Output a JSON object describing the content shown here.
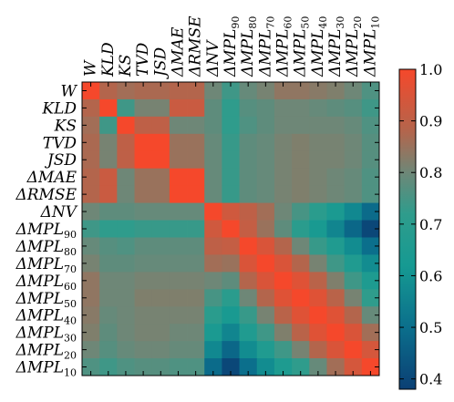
{
  "chart_data": {
    "type": "heatmap",
    "title": "",
    "xlabel": "",
    "ylabel": "",
    "labels": [
      {
        "main": "W",
        "sub": ""
      },
      {
        "main": "KLD",
        "sub": ""
      },
      {
        "main": "KS",
        "sub": ""
      },
      {
        "main": "TVD",
        "sub": ""
      },
      {
        "main": "JSD",
        "sub": ""
      },
      {
        "main": "ΔMAE",
        "sub": ""
      },
      {
        "main": "ΔRMSE",
        "sub": ""
      },
      {
        "main": "ΔNV",
        "sub": ""
      },
      {
        "main": "ΔMPL",
        "sub": "90"
      },
      {
        "main": "ΔMPL",
        "sub": "80"
      },
      {
        "main": "ΔMPL",
        "sub": "70"
      },
      {
        "main": "ΔMPL",
        "sub": "60"
      },
      {
        "main": "ΔMPL",
        "sub": "50"
      },
      {
        "main": "ΔMPL",
        "sub": "40"
      },
      {
        "main": "ΔMPL",
        "sub": "30"
      },
      {
        "main": "ΔMPL",
        "sub": "20"
      },
      {
        "main": "ΔMPL",
        "sub": "10"
      }
    ],
    "matrix": [
      [
        1.0,
        0.88,
        0.86,
        0.87,
        0.87,
        0.88,
        0.88,
        0.8,
        0.74,
        0.79,
        0.81,
        0.84,
        0.84,
        0.83,
        0.82,
        0.8,
        0.76
      ],
      [
        0.88,
        1.0,
        0.74,
        0.81,
        0.81,
        0.92,
        0.92,
        0.78,
        0.72,
        0.77,
        0.78,
        0.8,
        0.8,
        0.79,
        0.78,
        0.77,
        0.74
      ],
      [
        0.86,
        0.74,
        1.0,
        0.9,
        0.9,
        0.8,
        0.8,
        0.78,
        0.72,
        0.76,
        0.78,
        0.8,
        0.8,
        0.8,
        0.8,
        0.79,
        0.76
      ],
      [
        0.87,
        0.81,
        0.9,
        1.0,
        1.0,
        0.85,
        0.85,
        0.79,
        0.73,
        0.78,
        0.79,
        0.81,
        0.82,
        0.81,
        0.81,
        0.8,
        0.77
      ],
      [
        0.87,
        0.81,
        0.9,
        1.0,
        1.0,
        0.85,
        0.85,
        0.79,
        0.73,
        0.78,
        0.79,
        0.81,
        0.82,
        0.81,
        0.81,
        0.8,
        0.77
      ],
      [
        0.88,
        0.92,
        0.8,
        0.85,
        0.85,
        1.0,
        1.0,
        0.79,
        0.73,
        0.78,
        0.79,
        0.81,
        0.82,
        0.81,
        0.8,
        0.79,
        0.76
      ],
      [
        0.88,
        0.92,
        0.8,
        0.85,
        0.85,
        1.0,
        1.0,
        0.79,
        0.73,
        0.78,
        0.79,
        0.81,
        0.82,
        0.81,
        0.8,
        0.79,
        0.76
      ],
      [
        0.8,
        0.78,
        0.78,
        0.79,
        0.79,
        0.79,
        0.79,
        1.0,
        0.93,
        0.9,
        0.86,
        0.8,
        0.75,
        0.7,
        0.64,
        0.57,
        0.49
      ],
      [
        0.74,
        0.72,
        0.72,
        0.73,
        0.73,
        0.73,
        0.73,
        0.93,
        1.0,
        0.91,
        0.85,
        0.78,
        0.7,
        0.63,
        0.56,
        0.48,
        0.4
      ],
      [
        0.79,
        0.77,
        0.76,
        0.78,
        0.78,
        0.78,
        0.78,
        0.9,
        0.91,
        1.0,
        0.95,
        0.88,
        0.8,
        0.73,
        0.66,
        0.58,
        0.5
      ],
      [
        0.81,
        0.78,
        0.78,
        0.79,
        0.79,
        0.79,
        0.79,
        0.86,
        0.85,
        0.95,
        1.0,
        0.95,
        0.88,
        0.81,
        0.74,
        0.66,
        0.58
      ],
      [
        0.84,
        0.8,
        0.8,
        0.81,
        0.81,
        0.81,
        0.81,
        0.8,
        0.78,
        0.88,
        0.95,
        1.0,
        0.96,
        0.89,
        0.82,
        0.74,
        0.65
      ],
      [
        0.84,
        0.8,
        0.8,
        0.82,
        0.82,
        0.82,
        0.82,
        0.75,
        0.7,
        0.8,
        0.88,
        0.96,
        1.0,
        0.96,
        0.89,
        0.81,
        0.72
      ],
      [
        0.83,
        0.79,
        0.8,
        0.81,
        0.81,
        0.81,
        0.81,
        0.7,
        0.63,
        0.73,
        0.81,
        0.89,
        0.96,
        1.0,
        0.96,
        0.88,
        0.79
      ],
      [
        0.82,
        0.78,
        0.8,
        0.81,
        0.81,
        0.8,
        0.8,
        0.64,
        0.56,
        0.66,
        0.74,
        0.82,
        0.89,
        0.96,
        1.0,
        0.95,
        0.86
      ],
      [
        0.8,
        0.77,
        0.79,
        0.8,
        0.8,
        0.79,
        0.79,
        0.57,
        0.48,
        0.58,
        0.66,
        0.74,
        0.81,
        0.88,
        0.95,
        1.0,
        0.94
      ],
      [
        0.76,
        0.74,
        0.76,
        0.77,
        0.77,
        0.76,
        0.76,
        0.49,
        0.4,
        0.5,
        0.58,
        0.65,
        0.72,
        0.79,
        0.86,
        0.94,
        1.0
      ]
    ],
    "colorbar": {
      "range": [
        0.38,
        1.0
      ],
      "ticks": [
        "1.0",
        "0.9",
        "0.8",
        "0.7",
        "0.6",
        "0.5",
        "0.4"
      ],
      "tick_values": [
        1.0,
        0.9,
        0.8,
        0.7,
        0.6,
        0.5,
        0.4
      ],
      "colormap": [
        {
          "v": 0.38,
          "color": "#0b3f74"
        },
        {
          "v": 0.5,
          "color": "#0b6f8c"
        },
        {
          "v": 0.62,
          "color": "#169a92"
        },
        {
          "v": 0.72,
          "color": "#2f9c8c"
        },
        {
          "v": 0.8,
          "color": "#6e8777"
        },
        {
          "v": 0.88,
          "color": "#b3654c"
        },
        {
          "v": 1.0,
          "color": "#f5482b"
        }
      ]
    },
    "grid": false
  }
}
